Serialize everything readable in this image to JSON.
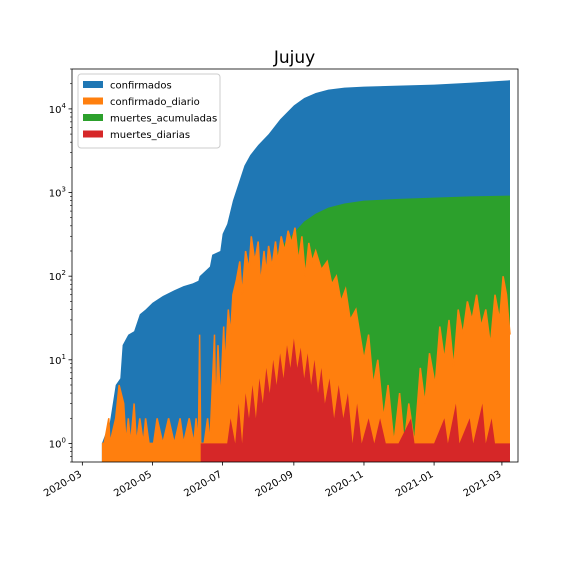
{
  "chart_data": {
    "type": "area",
    "title": "Jujuy",
    "xlabel": "",
    "ylabel": "",
    "yscale": "log",
    "ylim": [
      0.6,
      30000
    ],
    "xlim": [
      "2020-02-21",
      "2021-03-15"
    ],
    "grid": false,
    "legend_position": "upper-left",
    "x_ticks": [
      "2020-03",
      "2020-05",
      "2020-07",
      "2020-09",
      "2020-11",
      "2021-01",
      "2021-03"
    ],
    "y_ticks": [
      {
        "value": 1,
        "label": "10^0"
      },
      {
        "value": 10,
        "label": "10^1"
      },
      {
        "value": 100,
        "label": "10^2"
      },
      {
        "value": 1000,
        "label": "10^3"
      },
      {
        "value": 10000,
        "label": "10^4"
      }
    ],
    "series": [
      {
        "name": "confirmados",
        "color": "#1f77b4",
        "style": "fill",
        "points": [
          [
            "2020-03-18",
            1
          ],
          [
            "2020-03-25",
            1.8
          ],
          [
            "2020-03-30",
            5
          ],
          [
            "2020-04-03",
            6
          ],
          [
            "2020-04-05",
            15
          ],
          [
            "2020-04-10",
            20
          ],
          [
            "2020-04-15",
            22
          ],
          [
            "2020-04-20",
            35
          ],
          [
            "2020-04-25",
            40
          ],
          [
            "2020-05-01",
            48
          ],
          [
            "2020-05-10",
            58
          ],
          [
            "2020-05-20",
            68
          ],
          [
            "2020-05-28",
            76
          ],
          [
            "2020-06-05",
            82
          ],
          [
            "2020-06-10",
            88
          ],
          [
            "2020-06-11",
            100
          ],
          [
            "2020-06-20",
            130
          ],
          [
            "2020-06-22",
            180
          ],
          [
            "2020-06-29",
            200
          ],
          [
            "2020-07-01",
            320
          ],
          [
            "2020-07-05",
            420
          ],
          [
            "2020-07-10",
            800
          ],
          [
            "2020-07-15",
            1300
          ],
          [
            "2020-07-20",
            2100
          ],
          [
            "2020-07-25",
            2800
          ],
          [
            "2020-08-01",
            3700
          ],
          [
            "2020-08-10",
            5000
          ],
          [
            "2020-08-20",
            7500
          ],
          [
            "2020-09-01",
            11000
          ],
          [
            "2020-09-10",
            13500
          ],
          [
            "2020-09-20",
            15500
          ],
          [
            "2020-10-01",
            17000
          ],
          [
            "2020-10-15",
            18000
          ],
          [
            "2020-11-01",
            18500
          ],
          [
            "2020-12-01",
            19000
          ],
          [
            "2021-01-01",
            19500
          ],
          [
            "2021-02-01",
            20500
          ],
          [
            "2021-03-08",
            22000
          ]
        ]
      },
      {
        "name": "confirmado_diario",
        "color": "#ff7f0e",
        "style": "fill-and-line",
        "points": [
          [
            "2020-03-18",
            1
          ],
          [
            "2020-03-20",
            1
          ],
          [
            "2020-03-24",
            2
          ],
          [
            "2020-03-25",
            1
          ],
          [
            "2020-03-30",
            2
          ],
          [
            "2020-04-02",
            5
          ],
          [
            "2020-04-06",
            3
          ],
          [
            "2020-04-08",
            1
          ],
          [
            "2020-04-10",
            2
          ],
          [
            "2020-04-12",
            1
          ],
          [
            "2020-04-15",
            3
          ],
          [
            "2020-04-17",
            1
          ],
          [
            "2020-04-20",
            2
          ],
          [
            "2020-04-23",
            1
          ],
          [
            "2020-04-25",
            2
          ],
          [
            "2020-04-28",
            1
          ],
          [
            "2020-05-02",
            1
          ],
          [
            "2020-05-05",
            2
          ],
          [
            "2020-05-10",
            1
          ],
          [
            "2020-05-15",
            2
          ],
          [
            "2020-05-20",
            1
          ],
          [
            "2020-05-25",
            2
          ],
          [
            "2020-05-28",
            1
          ],
          [
            "2020-06-02",
            2
          ],
          [
            "2020-06-06",
            1
          ],
          [
            "2020-06-08",
            2
          ],
          [
            "2020-06-10",
            1
          ],
          [
            "2020-06-11",
            20
          ],
          [
            "2020-06-12",
            1
          ],
          [
            "2020-06-15",
            1
          ],
          [
            "2020-06-18",
            2
          ],
          [
            "2020-06-20",
            1
          ],
          [
            "2020-06-24",
            20
          ],
          [
            "2020-06-25",
            2
          ],
          [
            "2020-06-27",
            15
          ],
          [
            "2020-06-29",
            3
          ],
          [
            "2020-07-02",
            25
          ],
          [
            "2020-07-03",
            8
          ],
          [
            "2020-07-06",
            40
          ],
          [
            "2020-07-08",
            20
          ],
          [
            "2020-07-10",
            60
          ],
          [
            "2020-07-13",
            90
          ],
          [
            "2020-07-16",
            150
          ],
          [
            "2020-07-18",
            60
          ],
          [
            "2020-07-21",
            200
          ],
          [
            "2020-07-24",
            120
          ],
          [
            "2020-07-26",
            300
          ],
          [
            "2020-07-29",
            150
          ],
          [
            "2020-08-01",
            260
          ],
          [
            "2020-08-03",
            80
          ],
          [
            "2020-08-06",
            200
          ],
          [
            "2020-08-08",
            110
          ],
          [
            "2020-08-10",
            230
          ],
          [
            "2020-08-13",
            130
          ],
          [
            "2020-08-16",
            260
          ],
          [
            "2020-08-18",
            150
          ],
          [
            "2020-08-21",
            300
          ],
          [
            "2020-08-24",
            200
          ],
          [
            "2020-08-27",
            350
          ],
          [
            "2020-08-30",
            250
          ],
          [
            "2020-09-02",
            380
          ],
          [
            "2020-09-05",
            150
          ],
          [
            "2020-09-08",
            300
          ],
          [
            "2020-09-11",
            100
          ],
          [
            "2020-09-14",
            250
          ],
          [
            "2020-09-17",
            150
          ],
          [
            "2020-09-20",
            200
          ],
          [
            "2020-09-25",
            120
          ],
          [
            "2020-09-30",
            150
          ],
          [
            "2020-10-04",
            80
          ],
          [
            "2020-10-08",
            100
          ],
          [
            "2020-10-12",
            50
          ],
          [
            "2020-10-16",
            70
          ],
          [
            "2020-10-20",
            30
          ],
          [
            "2020-10-25",
            40
          ],
          [
            "2020-11-01",
            10
          ],
          [
            "2020-11-05",
            20
          ],
          [
            "2020-11-09",
            5
          ],
          [
            "2020-11-13",
            10
          ],
          [
            "2020-11-18",
            2
          ],
          [
            "2020-11-22",
            5
          ],
          [
            "2020-11-27",
            1
          ],
          [
            "2020-12-02",
            4
          ],
          [
            "2020-12-06",
            1
          ],
          [
            "2020-12-10",
            3
          ],
          [
            "2020-12-15",
            1
          ],
          [
            "2020-12-20",
            8
          ],
          [
            "2020-12-24",
            3
          ],
          [
            "2020-12-28",
            12
          ],
          [
            "2021-01-02",
            5
          ],
          [
            "2021-01-06",
            25
          ],
          [
            "2021-01-10",
            10
          ],
          [
            "2021-01-14",
            30
          ],
          [
            "2021-01-18",
            8
          ],
          [
            "2021-01-22",
            40
          ],
          [
            "2021-01-26",
            20
          ],
          [
            "2021-01-30",
            50
          ],
          [
            "2021-02-03",
            30
          ],
          [
            "2021-02-07",
            60
          ],
          [
            "2021-02-11",
            25
          ],
          [
            "2021-02-15",
            40
          ],
          [
            "2021-02-19",
            15
          ],
          [
            "2021-02-23",
            60
          ],
          [
            "2021-02-27",
            30
          ],
          [
            "2021-03-02",
            100
          ],
          [
            "2021-03-05",
            60
          ],
          [
            "2021-03-08",
            20
          ]
        ]
      },
      {
        "name": "muertes_acumuladas",
        "color": "#2ca02c",
        "style": "fill",
        "points": [
          [
            "2020-06-12",
            1
          ],
          [
            "2020-06-20",
            1
          ],
          [
            "2020-06-30",
            2
          ],
          [
            "2020-07-05",
            3
          ],
          [
            "2020-07-10",
            6
          ],
          [
            "2020-07-15",
            12
          ],
          [
            "2020-07-20",
            25
          ],
          [
            "2020-07-25",
            40
          ],
          [
            "2020-08-01",
            70
          ],
          [
            "2020-08-10",
            130
          ],
          [
            "2020-08-20",
            220
          ],
          [
            "2020-09-01",
            330
          ],
          [
            "2020-09-10",
            450
          ],
          [
            "2020-09-20",
            560
          ],
          [
            "2020-10-01",
            660
          ],
          [
            "2020-10-15",
            740
          ],
          [
            "2020-11-01",
            800
          ],
          [
            "2020-12-01",
            840
          ],
          [
            "2021-01-01",
            870
          ],
          [
            "2021-02-01",
            900
          ],
          [
            "2021-03-08",
            920
          ]
        ]
      },
      {
        "name": "muertes_diarias",
        "color": "#d62728",
        "style": "fill",
        "points": [
          [
            "2020-06-12",
            1
          ],
          [
            "2020-07-05",
            1
          ],
          [
            "2020-07-08",
            2
          ],
          [
            "2020-07-12",
            1
          ],
          [
            "2020-07-15",
            3
          ],
          [
            "2020-07-18",
            1
          ],
          [
            "2020-07-21",
            4
          ],
          [
            "2020-07-24",
            2
          ],
          [
            "2020-07-27",
            5
          ],
          [
            "2020-07-30",
            2
          ],
          [
            "2020-08-02",
            6
          ],
          [
            "2020-08-05",
            3
          ],
          [
            "2020-08-08",
            8
          ],
          [
            "2020-08-11",
            4
          ],
          [
            "2020-08-14",
            10
          ],
          [
            "2020-08-17",
            5
          ],
          [
            "2020-08-20",
            12
          ],
          [
            "2020-08-23",
            6
          ],
          [
            "2020-08-26",
            15
          ],
          [
            "2020-08-29",
            8
          ],
          [
            "2020-09-01",
            18
          ],
          [
            "2020-09-04",
            8
          ],
          [
            "2020-09-07",
            14
          ],
          [
            "2020-09-10",
            6
          ],
          [
            "2020-09-13",
            12
          ],
          [
            "2020-09-16",
            5
          ],
          [
            "2020-09-19",
            10
          ],
          [
            "2020-09-22",
            4
          ],
          [
            "2020-09-25",
            8
          ],
          [
            "2020-09-28",
            3
          ],
          [
            "2020-10-02",
            6
          ],
          [
            "2020-10-06",
            2
          ],
          [
            "2020-10-10",
            5
          ],
          [
            "2020-10-14",
            2
          ],
          [
            "2020-10-18",
            4
          ],
          [
            "2020-10-22",
            1
          ],
          [
            "2020-10-26",
            3
          ],
          [
            "2020-10-30",
            1
          ],
          [
            "2020-11-05",
            2
          ],
          [
            "2020-11-10",
            1
          ],
          [
            "2020-11-15",
            2
          ],
          [
            "2020-11-20",
            1
          ],
          [
            "2020-12-01",
            1
          ],
          [
            "2020-12-12",
            2
          ],
          [
            "2020-12-15",
            1
          ],
          [
            "2021-01-01",
            1
          ],
          [
            "2021-01-10",
            2
          ],
          [
            "2021-01-13",
            1
          ],
          [
            "2021-01-20",
            3
          ],
          [
            "2021-01-23",
            1
          ],
          [
            "2021-02-01",
            2
          ],
          [
            "2021-02-04",
            1
          ],
          [
            "2021-02-12",
            3
          ],
          [
            "2021-02-15",
            1
          ],
          [
            "2021-02-20",
            2
          ],
          [
            "2021-02-23",
            1
          ],
          [
            "2021-03-08",
            1
          ]
        ]
      }
    ]
  }
}
